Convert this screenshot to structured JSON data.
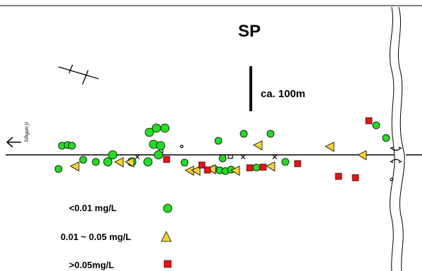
{
  "map": {
    "title": "SP",
    "scale_label": "ca. 100m",
    "road_label": "Sibgan ji",
    "colors": {
      "low": "#22dd22",
      "mid": "#f5d234",
      "high": "#ee1111",
      "outline": "#000000"
    }
  },
  "legend": {
    "items": [
      {
        "label": "<0.01 mg/L",
        "symbol": "circle",
        "color": "#22dd22"
      },
      {
        "label": "0.01 ~ 0.05 mg/L",
        "symbol": "triangle",
        "color": "#f5d234"
      },
      {
        "label": ">0.05mg/L",
        "symbol": "square",
        "color": "#ee1111"
      }
    ]
  }
}
